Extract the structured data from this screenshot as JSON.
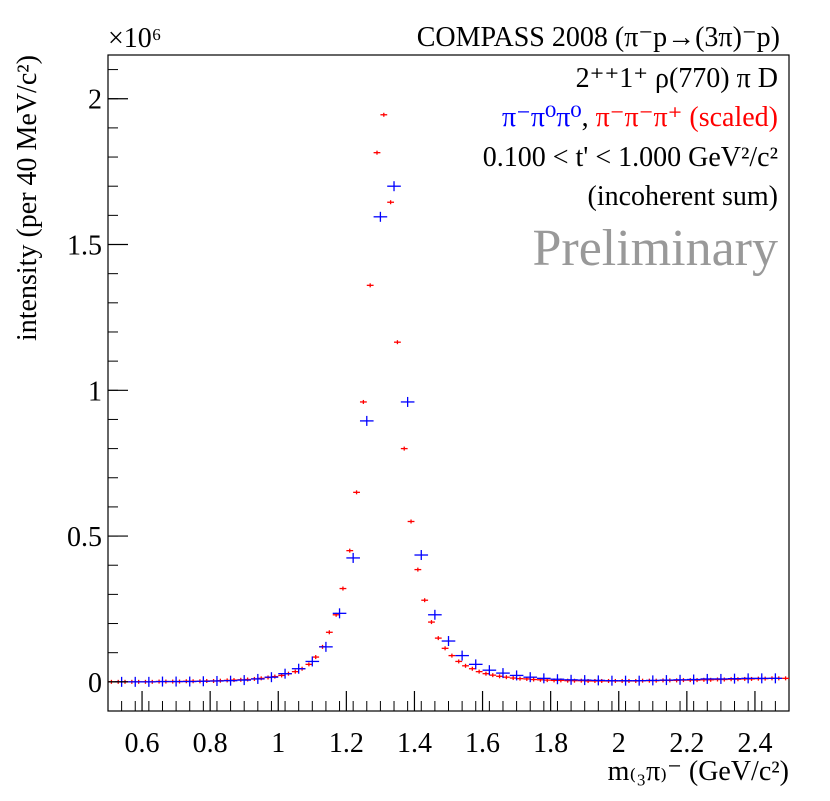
{
  "chart_data": {
    "type": "scatter",
    "title": "COMPASS 2008 (π⁻p→(3π)⁻p)",
    "wave_label": "2⁺⁺1⁺ ρ(770) π D",
    "tprime_label": "0.100 < t' < 1.000 GeV²/c²",
    "incoherent_label": "(incoherent sum)",
    "watermark": "Preliminary",
    "exponent_label": "×10⁶",
    "xlabel": "m₍₃π₎⁻ (GeV/c²)",
    "ylabel": "intensity (per 40 MeV/c²)",
    "xlim": [
      0.5,
      2.5
    ],
    "ylim": [
      -0.1,
      2.15
    ],
    "y_scale": 1000000,
    "x_ticks": [
      "0.6",
      "0.8",
      "1",
      "1.2",
      "1.4",
      "1.6",
      "1.8",
      "2",
      "2.2",
      "2.4"
    ],
    "y_ticks": [
      "0",
      "0.5",
      "1",
      "1.5",
      "2"
    ],
    "legend": {
      "blue_label": "π⁻π⁰π⁰",
      "separator": ",",
      "red_label": "π⁻π⁻π⁺ (scaled)"
    },
    "colors": {
      "blue": "#0000ff",
      "red": "#ff0000",
      "watermark": "#999999",
      "axis": "#000000"
    },
    "series": [
      {
        "name": "π⁻π⁰π⁰",
        "color": "blue",
        "bin_width": 0.04,
        "x": [
          0.54,
          0.58,
          0.62,
          0.66,
          0.7,
          0.74,
          0.78,
          0.82,
          0.86,
          0.9,
          0.94,
          0.98,
          1.02,
          1.06,
          1.1,
          1.14,
          1.18,
          1.22,
          1.26,
          1.3,
          1.34,
          1.38,
          1.42,
          1.46,
          1.5,
          1.54,
          1.58,
          1.62,
          1.66,
          1.7,
          1.74,
          1.78,
          1.82,
          1.86,
          1.9,
          1.94,
          1.98,
          2.02,
          2.06,
          2.1,
          2.14,
          2.18,
          2.22,
          2.26,
          2.3,
          2.34,
          2.38,
          2.42,
          2.46
        ],
        "y": [
          0.0,
          0.0,
          0.0,
          0.001,
          0.001,
          0.001,
          0.002,
          0.003,
          0.004,
          0.006,
          0.01,
          0.016,
          0.028,
          0.045,
          0.07,
          0.12,
          0.235,
          0.425,
          0.895,
          1.595,
          1.7,
          0.96,
          0.435,
          0.23,
          0.14,
          0.09,
          0.06,
          0.04,
          0.03,
          0.022,
          0.016,
          0.012,
          0.009,
          0.007,
          0.006,
          0.005,
          0.004,
          0.004,
          0.004,
          0.005,
          0.006,
          0.007,
          0.008,
          0.01,
          0.01,
          0.011,
          0.012,
          0.012,
          0.012
        ]
      },
      {
        "name": "π⁻π⁻π⁺ (scaled)",
        "color": "red",
        "bin_width": 0.02,
        "x": [
          0.51,
          0.53,
          0.55,
          0.57,
          0.59,
          0.61,
          0.63,
          0.65,
          0.67,
          0.69,
          0.71,
          0.73,
          0.75,
          0.77,
          0.79,
          0.81,
          0.83,
          0.85,
          0.87,
          0.89,
          0.91,
          0.93,
          0.95,
          0.97,
          0.99,
          1.01,
          1.03,
          1.05,
          1.07,
          1.09,
          1.11,
          1.13,
          1.15,
          1.17,
          1.19,
          1.21,
          1.23,
          1.25,
          1.27,
          1.29,
          1.31,
          1.33,
          1.35,
          1.37,
          1.39,
          1.41,
          1.43,
          1.45,
          1.47,
          1.49,
          1.51,
          1.53,
          1.55,
          1.57,
          1.59,
          1.61,
          1.63,
          1.65,
          1.67,
          1.69,
          1.71,
          1.73,
          1.75,
          1.77,
          1.79,
          1.81,
          1.83,
          1.85,
          1.87,
          1.89,
          1.91,
          1.93,
          1.95,
          1.97,
          1.99,
          2.01,
          2.03,
          2.05,
          2.07,
          2.09,
          2.11,
          2.13,
          2.15,
          2.17,
          2.19,
          2.21,
          2.23,
          2.25,
          2.27,
          2.29,
          2.31,
          2.33,
          2.35,
          2.37,
          2.39,
          2.41,
          2.43,
          2.45,
          2.47,
          2.49
        ],
        "y": [
          0.0,
          0.0,
          0.0,
          0.0,
          0.0,
          0.0,
          0.0,
          0.001,
          0.001,
          0.001,
          0.001,
          0.002,
          0.002,
          0.002,
          0.003,
          0.003,
          0.004,
          0.005,
          0.006,
          0.007,
          0.008,
          0.01,
          0.012,
          0.015,
          0.018,
          0.022,
          0.028,
          0.035,
          0.045,
          0.06,
          0.085,
          0.12,
          0.17,
          0.23,
          0.32,
          0.45,
          0.65,
          0.96,
          1.36,
          1.815,
          1.945,
          1.645,
          1.165,
          0.8,
          0.55,
          0.385,
          0.28,
          0.205,
          0.15,
          0.115,
          0.09,
          0.07,
          0.055,
          0.045,
          0.035,
          0.028,
          0.023,
          0.019,
          0.016,
          0.013,
          0.011,
          0.01,
          0.008,
          0.007,
          0.006,
          0.005,
          0.005,
          0.004,
          0.004,
          0.004,
          0.003,
          0.003,
          0.003,
          0.003,
          0.003,
          0.003,
          0.003,
          0.003,
          0.004,
          0.004,
          0.004,
          0.005,
          0.005,
          0.005,
          0.006,
          0.006,
          0.006,
          0.007,
          0.007,
          0.008,
          0.008,
          0.009,
          0.009,
          0.01,
          0.01,
          0.011,
          0.011,
          0.012,
          0.012,
          0.012
        ]
      }
    ]
  }
}
